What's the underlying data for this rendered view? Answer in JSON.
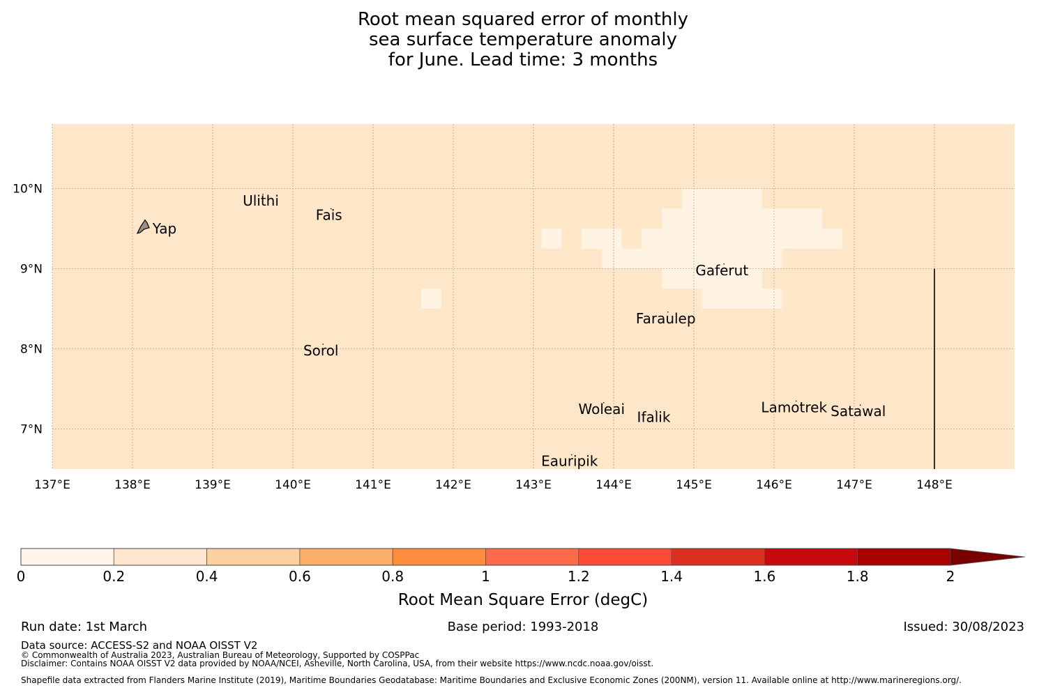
{
  "title_lines": [
    "Root mean squared error of monthly",
    "sea surface temperature anomaly",
    "for June. Lead time: 3 months"
  ],
  "map": {
    "lon_range": [
      137,
      149
    ],
    "lat_range": [
      6.5,
      10.8
    ],
    "lon_ticks": [
      137,
      138,
      139,
      140,
      141,
      142,
      143,
      144,
      145,
      146,
      147,
      148
    ],
    "lon_tick_labels": [
      "137°E",
      "138°E",
      "139°E",
      "140°E",
      "141°E",
      "142°E",
      "143°E",
      "144°E",
      "145°E",
      "146°E",
      "147°E",
      "148°E"
    ],
    "lat_ticks": [
      7,
      8,
      9,
      10
    ],
    "lat_tick_labels": [
      "7°N",
      "8°N",
      "9°N",
      "10°N"
    ],
    "background_color": "#fee6c9",
    "low_color": "#fff3e3",
    "gridlines": true,
    "boundary_line": {
      "lon": 148,
      "lat": [
        6.5,
        9.0
      ]
    },
    "low_error_cells": [
      {
        "lon": [
          143.1,
          143.35
        ],
        "lat": [
          9.25,
          9.5
        ]
      },
      {
        "lon": [
          143.6,
          144.1
        ],
        "lat": [
          9.25,
          9.5
        ]
      },
      {
        "lon": [
          143.85,
          144.1
        ],
        "lat": [
          9.0,
          9.25
        ]
      },
      {
        "lon": [
          144.1,
          146.1
        ],
        "lat": [
          9.0,
          9.25
        ]
      },
      {
        "lon": [
          144.35,
          146.85
        ],
        "lat": [
          9.25,
          9.5
        ]
      },
      {
        "lon": [
          144.6,
          146.6
        ],
        "lat": [
          9.5,
          9.75
        ]
      },
      {
        "lon": [
          144.85,
          145.85
        ],
        "lat": [
          9.75,
          10.0
        ]
      },
      {
        "lon": [
          144.6,
          145.85
        ],
        "lat": [
          8.75,
          9.0
        ]
      },
      {
        "lon": [
          145.1,
          146.1
        ],
        "lat": [
          8.5,
          8.75
        ]
      },
      {
        "lon": [
          141.6,
          141.85
        ],
        "lat": [
          8.5,
          8.75
        ]
      }
    ],
    "islands": [
      {
        "name": "Yap",
        "lon": 138.25,
        "lat": 9.5
      },
      {
        "name": "Ulithi",
        "lon": 139.6,
        "lat": 9.85
      },
      {
        "name": "Fais",
        "lon": 140.45,
        "lat": 9.67
      },
      {
        "name": "Gaferut",
        "lon": 145.35,
        "lat": 8.98
      },
      {
        "name": "Faraulep",
        "lon": 144.65,
        "lat": 8.38
      },
      {
        "name": "Sorol",
        "lon": 140.35,
        "lat": 7.98
      },
      {
        "name": "Woleai",
        "lon": 143.85,
        "lat": 7.25
      },
      {
        "name": "Ifalik",
        "lon": 144.5,
        "lat": 7.15
      },
      {
        "name": "Lamotrek",
        "lon": 146.25,
        "lat": 7.27
      },
      {
        "name": "Satawal",
        "lon": 147.05,
        "lat": 7.22
      },
      {
        "name": "Eauripik",
        "lon": 143.45,
        "lat": 6.6
      }
    ]
  },
  "colorbar": {
    "label": "Root Mean Square Error (degC)",
    "tick_labels": [
      "0",
      "0.2",
      "0.4",
      "0.6",
      "0.8",
      "1",
      "1.2",
      "1.4",
      "1.6",
      "1.8",
      "2"
    ],
    "colors": [
      "#fff5eb",
      "#fee6ce",
      "#fdd0a2",
      "#fdae6b",
      "#fd8d3c",
      "#fc6a4a",
      "#fb4a37",
      "#d9301f",
      "#c8090e",
      "#a90000"
    ],
    "extend_color": "#7a0000"
  },
  "footer": {
    "run_date": "Run date: 1st March",
    "base_period": "Base period: 1993-2018",
    "issued": "Issued: 30/08/2023",
    "data_source": "Data source: ACCESS-S2 and NOAA OISST V2",
    "copyright": "© Commonwealth of Australia 2023, Australian Bureau of Meteorology, Supported by COSPPac",
    "disclaimer": "Disclaimer: Contains NOAA OISST V2 data provided by NOAA/NCEI, Asheville, North Carolina, USA, from their website https://www.ncdc.noaa.gov/oisst.",
    "shapefile": "Shapefile data extracted from Flanders Marine Institute (2019), Maritime Boundaries Geodatabase: Maritime Boundaries and Exclusive Economic Zones (200NM), version 11. Available online at http://www.marineregions.org/."
  }
}
